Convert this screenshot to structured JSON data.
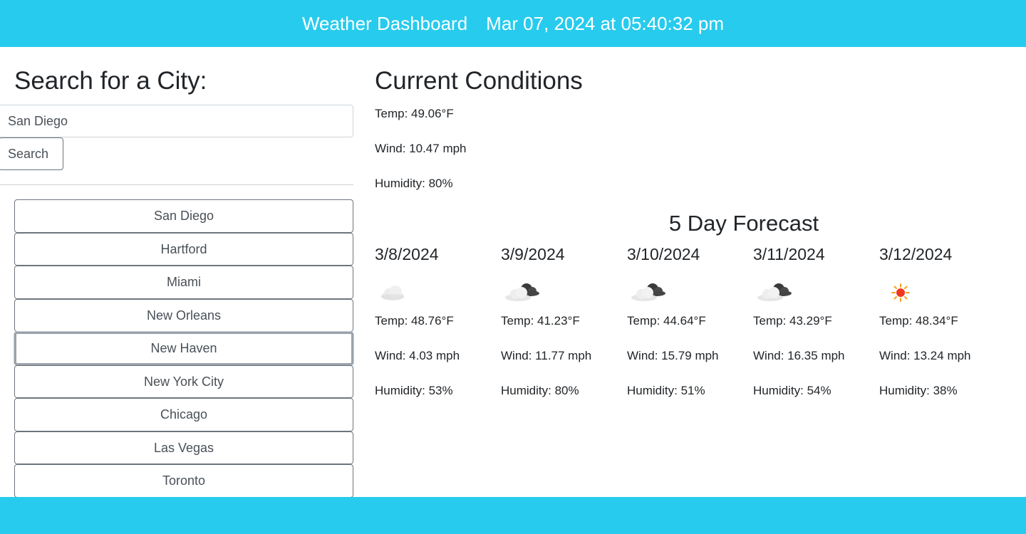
{
  "header": {
    "title": "Weather Dashboard",
    "datetime": "Mar 07, 2024 at 05:40:32 pm"
  },
  "search": {
    "heading": "Search for a City:",
    "input_value": "San Diego",
    "button_label": "Search"
  },
  "history": [
    "San Diego",
    "Hartford",
    "Miami",
    "New Orleans",
    "New Haven",
    "New York City",
    "Chicago",
    "Las Vegas",
    "Toronto"
  ],
  "current": {
    "heading": "Current Conditions",
    "temp": "Temp: 49.06°F",
    "wind": "Wind: 10.47 mph",
    "humidity": "Humidity: 80%"
  },
  "forecast": {
    "heading": "5 Day Forecast",
    "days": [
      {
        "date": "3/8/2024",
        "icon": "cloud-icon",
        "temp": "Temp: 48.76°F",
        "wind": "Wind: 4.03 mph",
        "humidity": "Humidity: 53%"
      },
      {
        "date": "3/9/2024",
        "icon": "broken-clouds-icon",
        "temp": "Temp: 41.23°F",
        "wind": "Wind: 11.77 mph",
        "humidity": "Humidity: 80%"
      },
      {
        "date": "3/10/2024",
        "icon": "broken-clouds-icon",
        "temp": "Temp: 44.64°F",
        "wind": "Wind: 15.79 mph",
        "humidity": "Humidity: 51%"
      },
      {
        "date": "3/11/2024",
        "icon": "broken-clouds-icon",
        "temp": "Temp: 43.29°F",
        "wind": "Wind: 16.35 mph",
        "humidity": "Humidity: 54%"
      },
      {
        "date": "3/12/2024",
        "icon": "sun-icon",
        "temp": "Temp: 48.34°F",
        "wind": "Wind: 13.24 mph",
        "humidity": "Humidity: 38%"
      }
    ]
  },
  "colors": {
    "header_bg": "#27cbed",
    "footer_bg": "#27cbed"
  }
}
